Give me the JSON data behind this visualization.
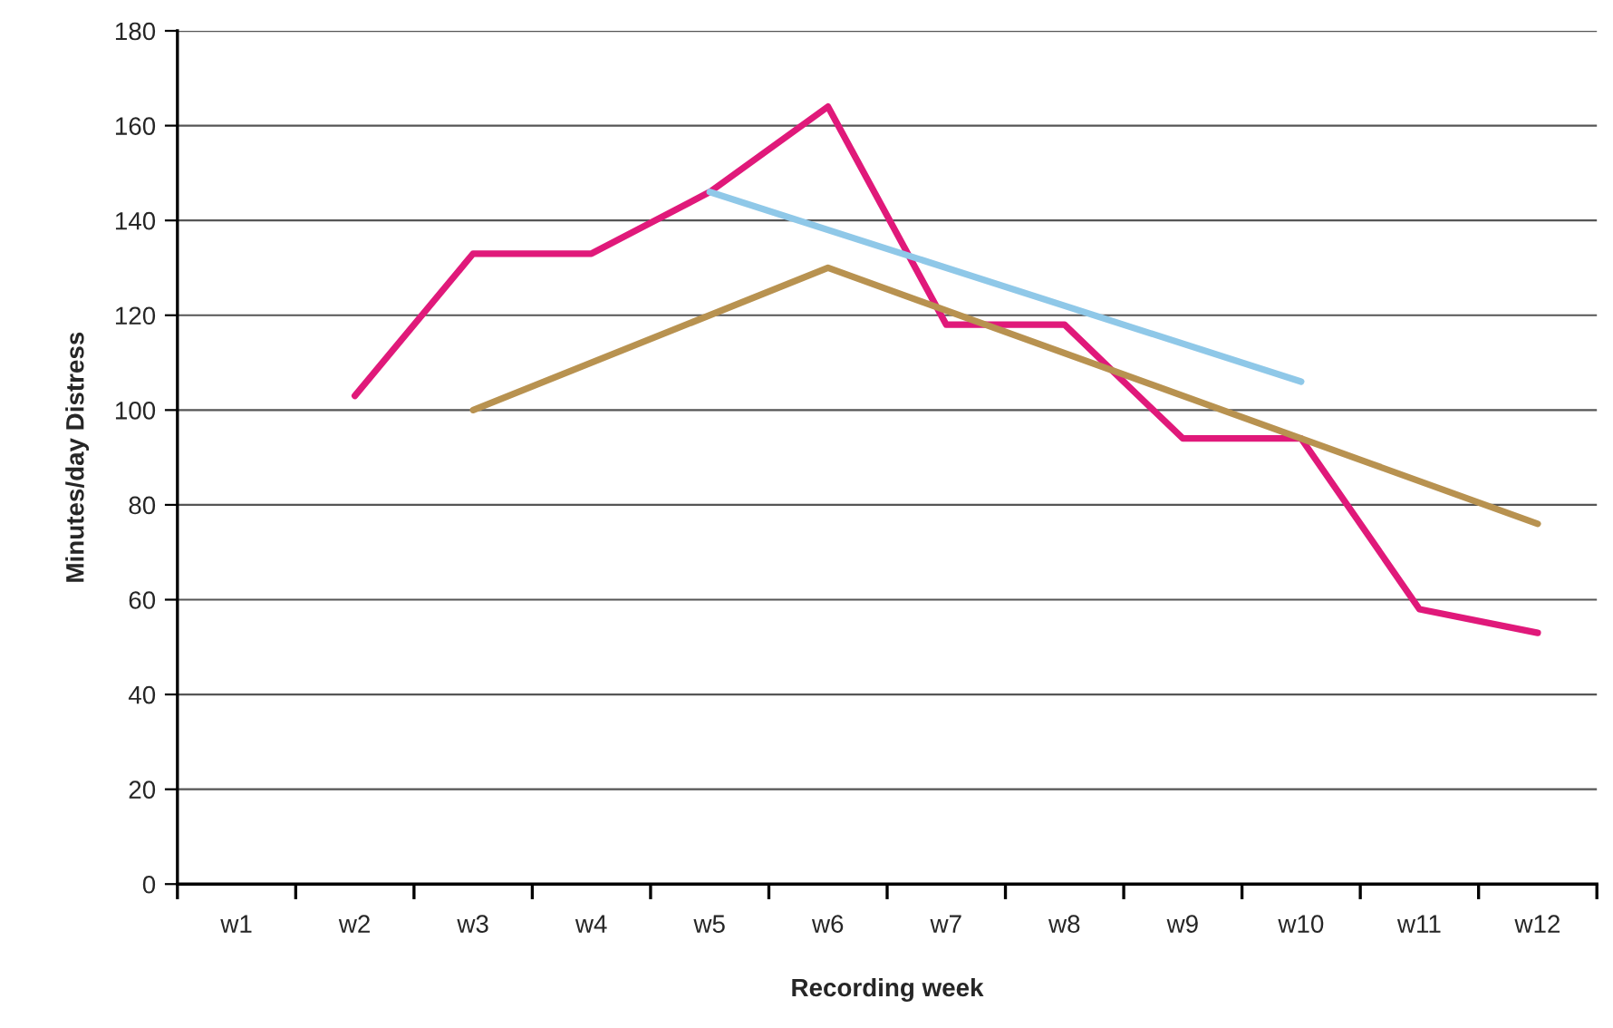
{
  "chart_data": {
    "type": "line",
    "xlabel": "Recording week",
    "ylabel": "Minutes/day Distress",
    "categories": [
      "w1",
      "w2",
      "w3",
      "w4",
      "w5",
      "w6",
      "w7",
      "w8",
      "w9",
      "w10",
      "w11",
      "w12"
    ],
    "series": [
      {
        "color": "#e0197a",
        "values": [
          null,
          103,
          133,
          133,
          146,
          164,
          118,
          118,
          94,
          94,
          58,
          53
        ]
      },
      {
        "color": "#8fc8e8",
        "values": [
          null,
          null,
          null,
          null,
          146,
          null,
          null,
          null,
          null,
          106,
          null,
          null
        ]
      },
      {
        "color": "#b89250",
        "values": [
          null,
          null,
          100,
          null,
          null,
          130,
          null,
          null,
          null,
          null,
          null,
          76
        ]
      }
    ],
    "ylim": [
      0,
      180
    ],
    "yticks": [
      0,
      20,
      40,
      60,
      80,
      100,
      120,
      140,
      160,
      180
    ],
    "grid": "y",
    "marker": "none",
    "line_style": "solid"
  }
}
